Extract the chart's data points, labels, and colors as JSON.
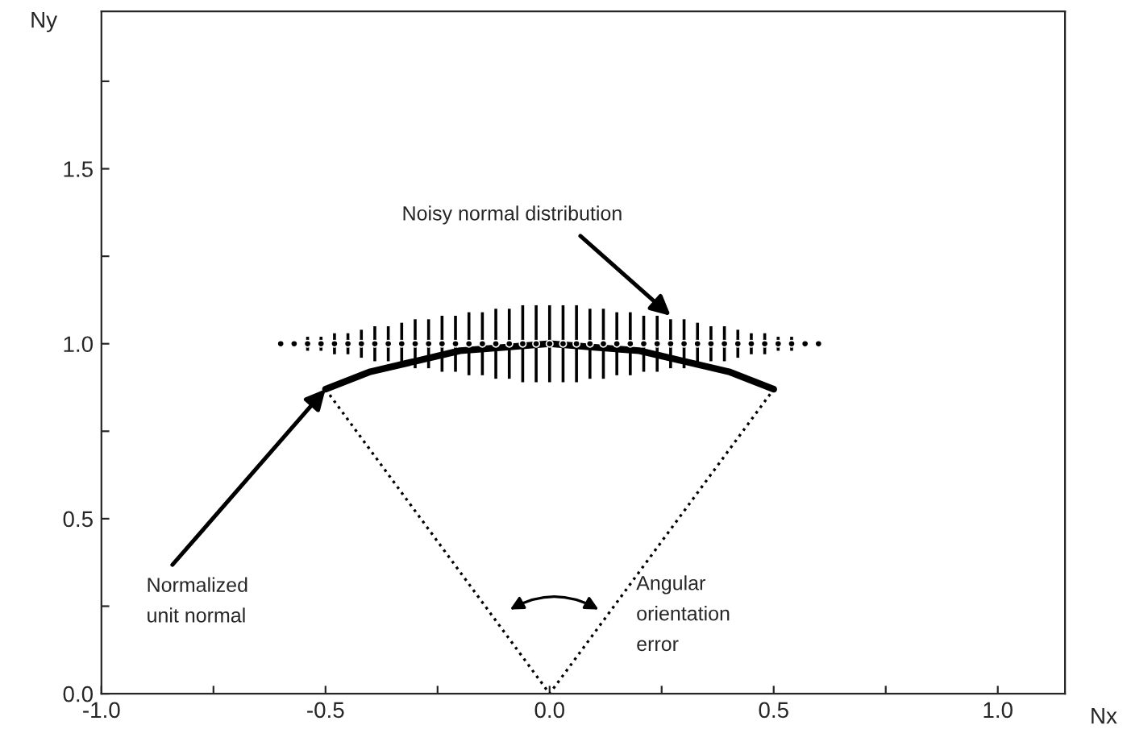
{
  "chart_data": {
    "type": "line",
    "xlabel": "Nx",
    "ylabel": "Ny",
    "xlim": [
      -1.0,
      1.15
    ],
    "ylim": [
      0,
      1.95
    ],
    "xticks": [
      {
        "value": -1.0,
        "label": "-1.0"
      },
      {
        "value": -0.75,
        "label": null
      },
      -0.5,
      {
        "value": -0.25,
        "label": null
      },
      {
        "value": 0.0,
        "label": "0.0"
      },
      {
        "value": 0.25,
        "label": null
      },
      0.5,
      {
        "value": 0.75,
        "label": null
      },
      {
        "value": 1.0,
        "label": "1.0"
      }
    ],
    "yticks": [
      {
        "value": 0.0,
        "label": "0.0"
      },
      {
        "value": 0.25,
        "label": null
      },
      0.5,
      {
        "value": 0.75,
        "label": null
      },
      {
        "value": 1.0,
        "label": "1.0"
      },
      {
        "value": 1.25,
        "label": null
      },
      1.5,
      {
        "value": 1.75,
        "label": null
      }
    ],
    "grid": false,
    "series": [
      {
        "color": "#000000",
        "line_style": "solid",
        "x": [
          -0.5,
          -0.4,
          -0.3,
          -0.2,
          -0.1,
          0.0,
          0.1,
          0.2,
          0.3,
          0.4,
          0.5
        ],
        "values": [
          0.87,
          0.92,
          0.95,
          0.98,
          0.99,
          1.0,
          0.99,
          0.98,
          0.95,
          0.92,
          0.87
        ]
      },
      {
        "type": "line",
        "color": "#000000",
        "line_style": "dotted",
        "x": [
          -0.5,
          0.0,
          0.5
        ],
        "values": [
          0.87,
          0.0,
          0.87
        ]
      },
      {
        "type": "scatter",
        "color": "#000000",
        "marker": "circle",
        "x": [
          -0.6,
          -0.57,
          -0.54,
          -0.51,
          -0.48,
          -0.45,
          -0.42,
          -0.39,
          -0.36,
          -0.33,
          -0.3,
          -0.27,
          -0.24,
          -0.21,
          -0.18,
          -0.15,
          -0.12,
          -0.09,
          -0.06,
          -0.03,
          0.0,
          0.03,
          0.06,
          0.09,
          0.12,
          0.15,
          0.18,
          0.21,
          0.24,
          0.27,
          0.3,
          0.33,
          0.36,
          0.39,
          0.42,
          0.45,
          0.48,
          0.51,
          0.54,
          0.57,
          0.6
        ],
        "values": [
          1.0,
          1.0,
          1.0,
          1.0,
          1.0,
          1.0,
          1.0,
          1.0,
          1.0,
          1.0,
          1.0,
          1.0,
          1.0,
          1.0,
          1.0,
          1.0,
          1.0,
          1.0,
          1.0,
          1.0,
          1.0,
          1.0,
          1.0,
          1.0,
          1.0,
          1.0,
          1.0,
          1.0,
          1.0,
          1.0,
          1.0,
          1.0,
          1.0,
          1.0,
          1.0,
          1.0,
          1.0,
          1.0,
          1.0,
          1.0,
          1.0
        ],
        "errors": [
          0.01,
          0.01,
          0.02,
          0.02,
          0.03,
          0.03,
          0.04,
          0.05,
          0.05,
          0.06,
          0.07,
          0.07,
          0.08,
          0.08,
          0.09,
          0.09,
          0.1,
          0.1,
          0.11,
          0.11,
          0.11,
          0.11,
          0.11,
          0.1,
          0.1,
          0.09,
          0.09,
          0.08,
          0.08,
          0.07,
          0.07,
          0.06,
          0.05,
          0.05,
          0.04,
          0.03,
          0.03,
          0.02,
          0.02,
          0.01,
          0.01
        ]
      }
    ],
    "annotations": [
      {
        "text": "Noisy normal distribution",
        "x": 0.27,
        "y": 1.08
      },
      {
        "text": "Normalized\nunit normal",
        "x": -0.5,
        "y": 0.87
      },
      "Angular\norientation\nerror"
    ]
  }
}
